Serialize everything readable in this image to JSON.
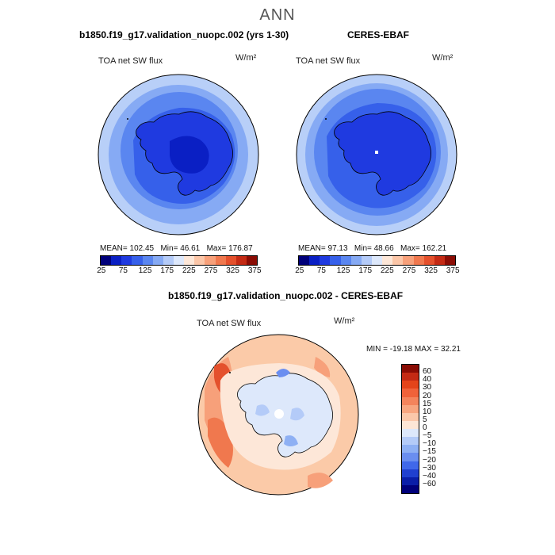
{
  "figure_title": "ANN",
  "panels": {
    "model": {
      "title": "b1850.f19_g17.validation_nuopc.002 (yrs 1-30)",
      "variable": "TOA net SW flux",
      "units": "W/m²",
      "mean_label": "MEAN=",
      "mean": "102.45",
      "min_label": "Min=",
      "min": "46.61",
      "max_label": "Max=",
      "max": "176.87"
    },
    "obs": {
      "title": "CERES-EBAF",
      "variable": "TOA net SW flux",
      "units": "W/m²",
      "mean_label": "MEAN=",
      "mean": "97.13",
      "min_label": "Min=",
      "min": "48.66",
      "max_label": "Max=",
      "max": "162.21"
    },
    "diff": {
      "title": "b1850.f19_g17.validation_nuopc.002 - CERES-EBAF",
      "variable": "TOA net SW flux",
      "units": "W/m²",
      "min_label": "MIN =",
      "min": "-19.18",
      "max_label": "MAX =",
      "max": "32.21"
    }
  },
  "colorbar_abs": {
    "ticks": [
      "25",
      "75",
      "125",
      "175",
      "225",
      "275",
      "325",
      "375"
    ],
    "colors": [
      "#00007a",
      "#0a1fc4",
      "#1f3ae0",
      "#3660ea",
      "#5a86f0",
      "#86aaf4",
      "#b4cbf8",
      "#dde8fb",
      "#fde7d8",
      "#fbc6a8",
      "#f7a07a",
      "#f0784e",
      "#e4502c",
      "#c42a14",
      "#8a0c04"
    ]
  },
  "colorbar_diff": {
    "ticks": [
      "60",
      "40",
      "30",
      "20",
      "15",
      "10",
      "5",
      "0",
      "−5",
      "−10",
      "−15",
      "−20",
      "−30",
      "−40",
      "−60"
    ],
    "colors": [
      "#8a0c04",
      "#c42a14",
      "#e4441a",
      "#f0623a",
      "#f4845c",
      "#f8a680",
      "#fbc8aa",
      "#fde6d6",
      "#dde8fb",
      "#b4cbf8",
      "#8eb0f4",
      "#6a8ef0",
      "#4068ea",
      "#2040d0",
      "#0a1ea8",
      "#00007a"
    ]
  }
}
